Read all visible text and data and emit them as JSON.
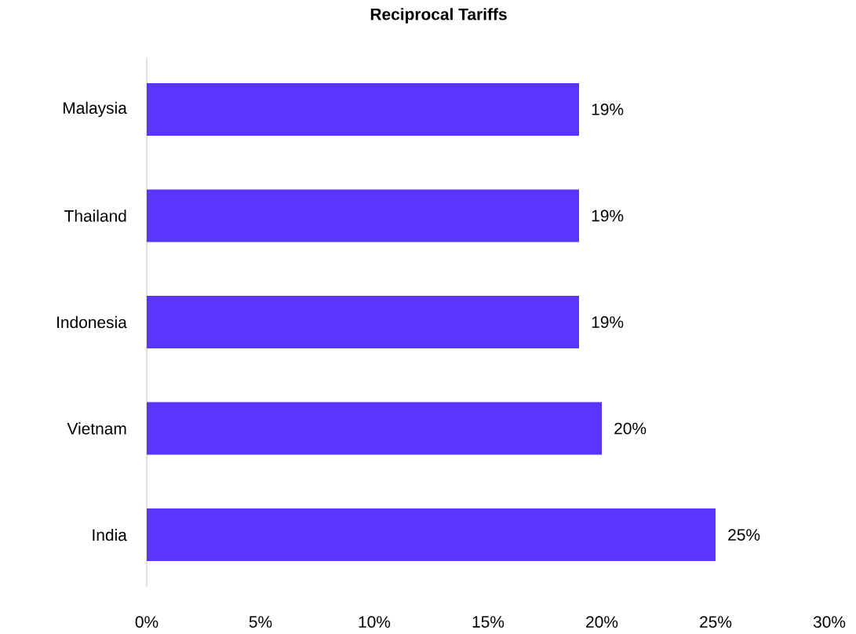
{
  "chart_data": {
    "type": "bar",
    "orientation": "horizontal",
    "title": "Reciprocal Tariffs",
    "categories": [
      "Malaysia",
      "Thailand",
      "Indonesia",
      "Vietnam",
      "India"
    ],
    "values": [
      19,
      19,
      19,
      20,
      25
    ],
    "value_labels": [
      "19%",
      "19%",
      "19%",
      "20%",
      "25%"
    ],
    "color": "#5a35ff",
    "xlim": [
      0,
      30
    ],
    "xticks": [
      {
        "value": 0,
        "label": "0%"
      },
      {
        "value": 5,
        "label": "5%"
      },
      {
        "value": 10,
        "label": "10%"
      },
      {
        "value": 15,
        "label": "15%"
      },
      {
        "value": 20,
        "label": "20%"
      },
      {
        "value": 25,
        "label": "25%"
      },
      {
        "value": 30,
        "label": "30%"
      }
    ],
    "grid": false
  }
}
